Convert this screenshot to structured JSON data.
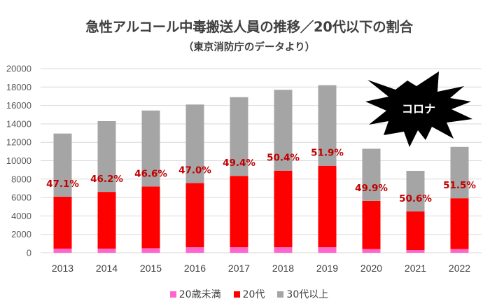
{
  "chart_data": {
    "type": "bar",
    "stacked": true,
    "title": "急性アルコール中毒搬送人員の推移／20代以下の割合",
    "subtitle": "（東京消防庁のデータより）",
    "categories": [
      "2013",
      "2014",
      "2015",
      "2016",
      "2017",
      "2018",
      "2019",
      "2020",
      "2021",
      "2022"
    ],
    "series": [
      {
        "name": "20歳未満",
        "color": "#FF66CC",
        "values": [
          450,
          450,
          500,
          600,
          600,
          600,
          600,
          400,
          300,
          400
        ]
      },
      {
        "name": "20代",
        "color": "#FF0000",
        "values": [
          5650,
          6160,
          6700,
          6970,
          7750,
          8320,
          8850,
          5240,
          4200,
          5520
        ]
      },
      {
        "name": "30代以上",
        "color": "#A5A5A5",
        "values": [
          6850,
          7690,
          8250,
          8530,
          8550,
          8780,
          8750,
          5660,
          4400,
          5580
        ]
      }
    ],
    "data_labels": [
      "47.1%",
      "46.2%",
      "46.6%",
      "47.0%",
      "49.4%",
      "50.4%",
      "51.9%",
      "49.9%",
      "50.6%",
      "51.5%"
    ],
    "label_color": "#C00000",
    "yticks": [
      "0",
      "2000",
      "4000",
      "6000",
      "8000",
      "10000",
      "12000",
      "14000",
      "16000",
      "18000",
      "20000"
    ],
    "ylim": [
      0,
      20000
    ],
    "grid": true,
    "legend_position": "bottom",
    "annotation": {
      "text": "コロナ",
      "shape": "explosion",
      "fill": "#000000",
      "text_color": "#FFFFFF"
    }
  }
}
